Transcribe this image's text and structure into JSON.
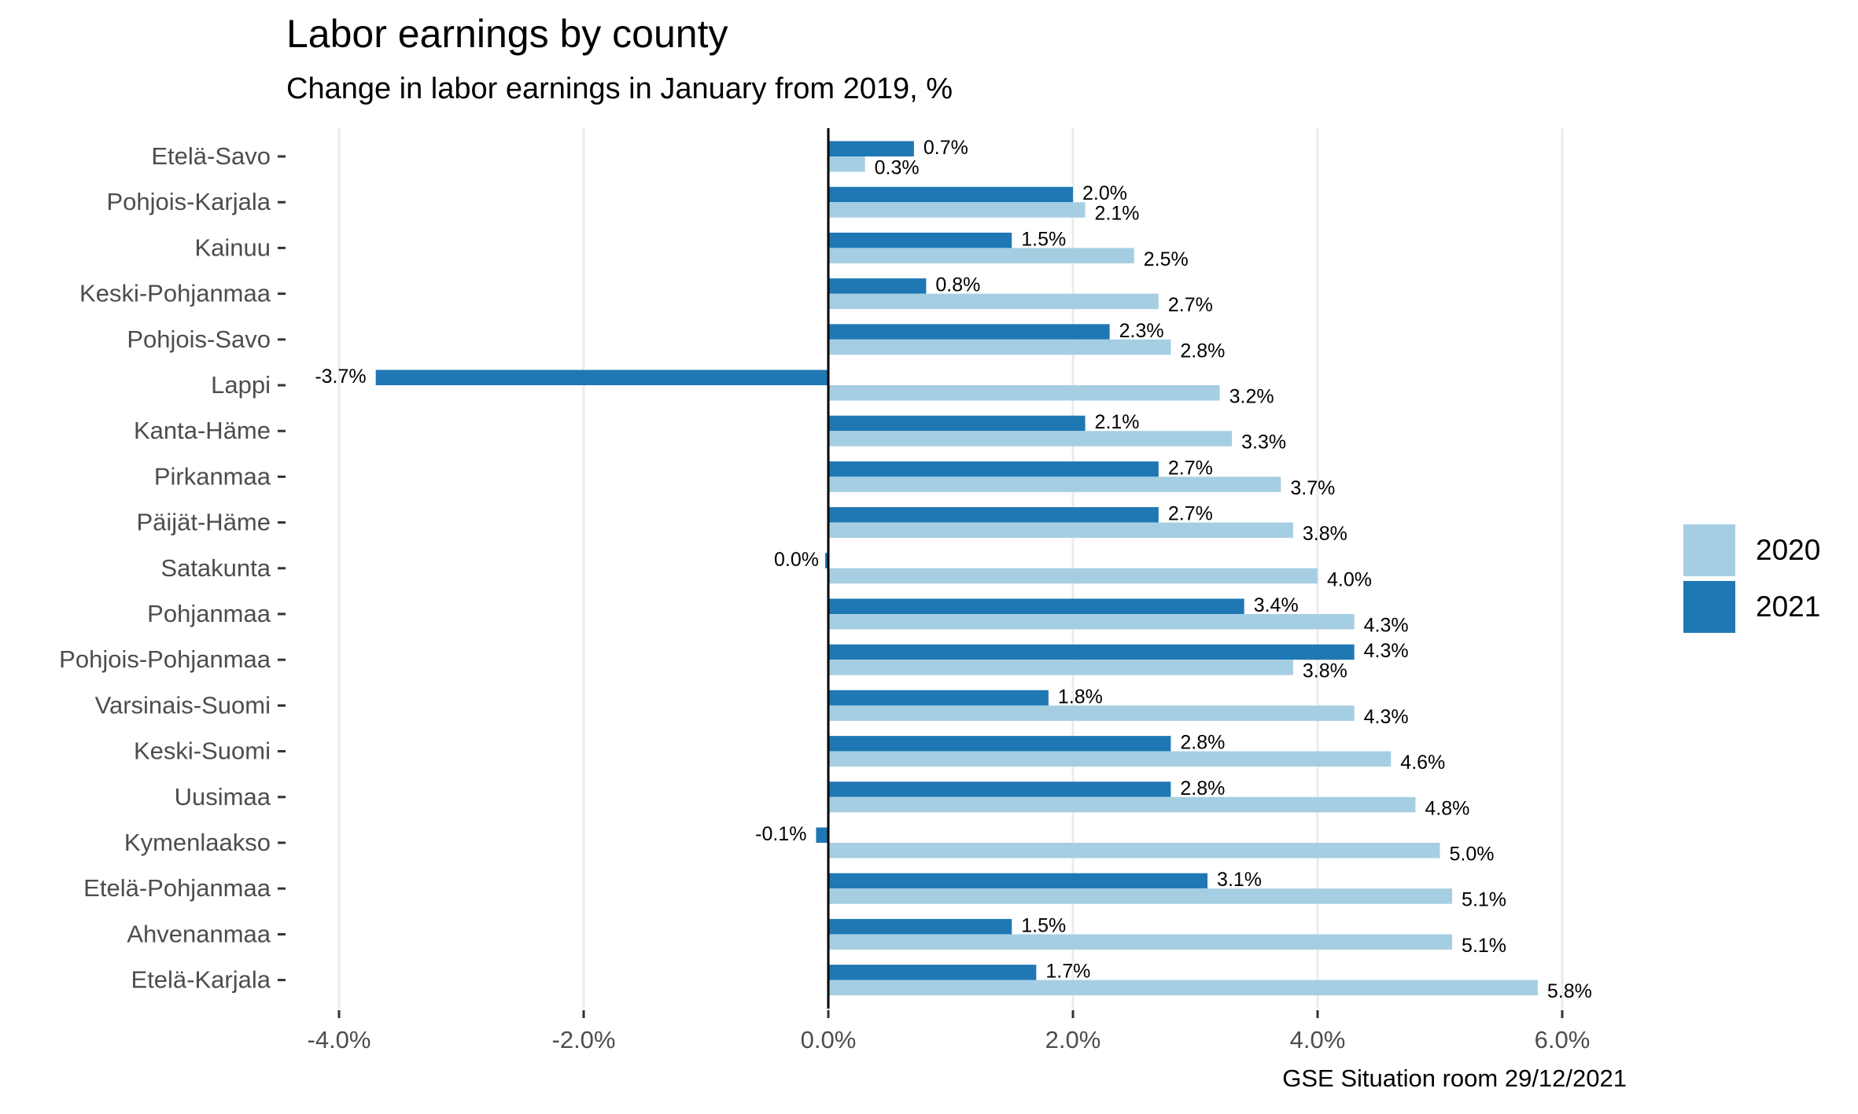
{
  "chart_data": {
    "type": "bar",
    "orientation": "horizontal",
    "title": "Labor earnings by county",
    "subtitle": "Change in labor earnings in January from 2019, %",
    "caption": "GSE Situation room 29/12/2021",
    "xlabel": "",
    "ylabel": "",
    "xlim": [
      -4.4,
      7.0
    ],
    "x_ticks": [
      -4,
      -2,
      0,
      2,
      4,
      6
    ],
    "x_tick_labels": [
      "-4.0%",
      "-2.0%",
      "0.0%",
      "2.0%",
      "4.0%",
      "6.0%"
    ],
    "grid": "vertical major gridlines",
    "legend_position": "right",
    "categories": [
      "Etelä-Savo",
      "Pohjois-Karjala",
      "Kainuu",
      "Keski-Pohjanmaa",
      "Pohjois-Savo",
      "Lappi",
      "Kanta-Häme",
      "Pirkanmaa",
      "Päijät-Häme",
      "Satakunta",
      "Pohjanmaa",
      "Pohjois-Pohjanmaa",
      "Varsinais-Suomi",
      "Keski-Suomi",
      "Uusimaa",
      "Kymenlaakso",
      "Etelä-Pohjanmaa",
      "Ahvenanmaa",
      "Etelä-Karjala"
    ],
    "series": [
      {
        "name": "2020",
        "color": "#a6cee3",
        "values": [
          0.3,
          2.1,
          2.5,
          2.7,
          2.8,
          3.2,
          3.3,
          3.7,
          3.8,
          4.0,
          4.3,
          3.8,
          4.3,
          4.6,
          4.8,
          5.0,
          5.1,
          5.1,
          5.8
        ],
        "labels": [
          "0.3%",
          "2.1%",
          "2.5%",
          "2.7%",
          "2.8%",
          "3.2%",
          "3.3%",
          "3.7%",
          "3.8%",
          "4.0%",
          "4.3%",
          "3.8%",
          "4.3%",
          "4.6%",
          "4.8%",
          "5.0%",
          "5.1%",
          "5.1%",
          "5.8%"
        ]
      },
      {
        "name": "2021",
        "color": "#1f78b4",
        "values": [
          0.7,
          2.0,
          1.5,
          0.8,
          2.3,
          -3.7,
          2.1,
          2.7,
          2.7,
          0.0,
          3.4,
          4.3,
          1.8,
          2.8,
          2.8,
          -0.1,
          3.1,
          1.5,
          1.7
        ],
        "labels": [
          "0.7%",
          "2.0%",
          "1.5%",
          "0.8%",
          "2.3%",
          "-3.7%",
          "2.1%",
          "2.7%",
          "2.7%",
          "0.0%",
          "3.4%",
          "4.3%",
          "1.8%",
          "2.8%",
          "2.8%",
          "-0.1%",
          "3.1%",
          "1.5%",
          "1.7%"
        ]
      }
    ]
  }
}
